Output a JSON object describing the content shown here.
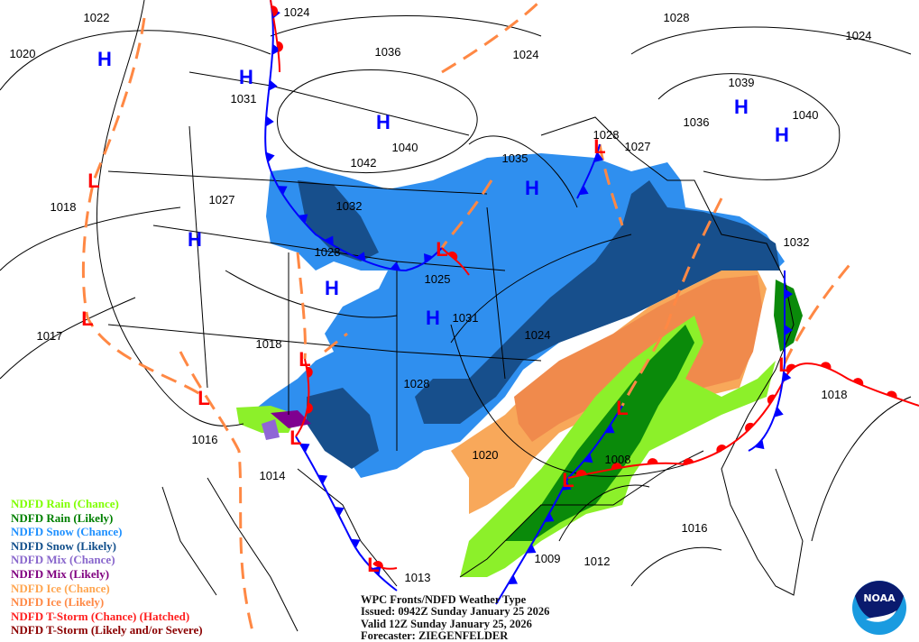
{
  "map": {
    "isobar_labels": [
      "1022",
      "1020",
      "1024",
      "1036",
      "1024",
      "1028",
      "1024",
      "1039",
      "1040",
      "1036",
      "1031",
      "1040",
      "1042",
      "1035",
      "1028",
      "1027",
      "1032",
      "1027",
      "1018",
      "1028",
      "1025",
      "1031",
      "1032",
      "1017",
      "1018",
      "1024",
      "1028",
      "1018",
      "1016",
      "1020",
      "1008",
      "1014",
      "1016",
      "1013",
      "1009",
      "1012"
    ],
    "high_label": "H",
    "low_label": "L",
    "high_count": 9,
    "low_count": 11,
    "colors": {
      "high": "#0000ff",
      "low": "#ff0000",
      "cold_front": "#0000ff",
      "warm_front": "#ff0000",
      "trough": "#ff8844",
      "rain_chance": "#8cf02a",
      "rain_likely": "#0a8a0a",
      "snow_chance": "#2f8fef",
      "snow_likely": "#174f8c",
      "mix_chance": "#9066d6",
      "mix_likely": "#800090",
      "ice_chance": "#f8a85a",
      "ice_likely": "#f08a4c",
      "tstorm_chance": "#ff2a2a",
      "tstorm_likely": "#8b0000"
    }
  },
  "legend": [
    {
      "label": "NDFD Rain (Chance)",
      "color": "#7fff00"
    },
    {
      "label": "NDFD Rain (Likely)",
      "color": "#008000"
    },
    {
      "label": "NDFD Snow (Chance)",
      "color": "#1e90ff"
    },
    {
      "label": "NDFD Snow (Likely)",
      "color": "#104e8b"
    },
    {
      "label": "NDFD Mix (Chance)",
      "color": "#8866cc"
    },
    {
      "label": "NDFD Mix (Likely)",
      "color": "#800080"
    },
    {
      "label": "NDFD Ice (Chance)",
      "color": "#ffa54f"
    },
    {
      "label": "NDFD Ice (Likely)",
      "color": "#ff8844"
    },
    {
      "label": "NDFD T-Storm (Chance) (Hatched)",
      "color": "#ff2020"
    },
    {
      "label": "NDFD T-Storm (Likely and/or Severe)",
      "color": "#8b0000"
    }
  ],
  "info": {
    "title": "WPC Fronts/NDFD Weather Type",
    "issued": "Issued: 0942Z Sunday January 25 2026",
    "valid": "Valid 12Z Sunday January 25, 2026",
    "forecaster": "Forecaster: ZIEGENFELDER"
  },
  "logo": {
    "text": "NOAA"
  }
}
